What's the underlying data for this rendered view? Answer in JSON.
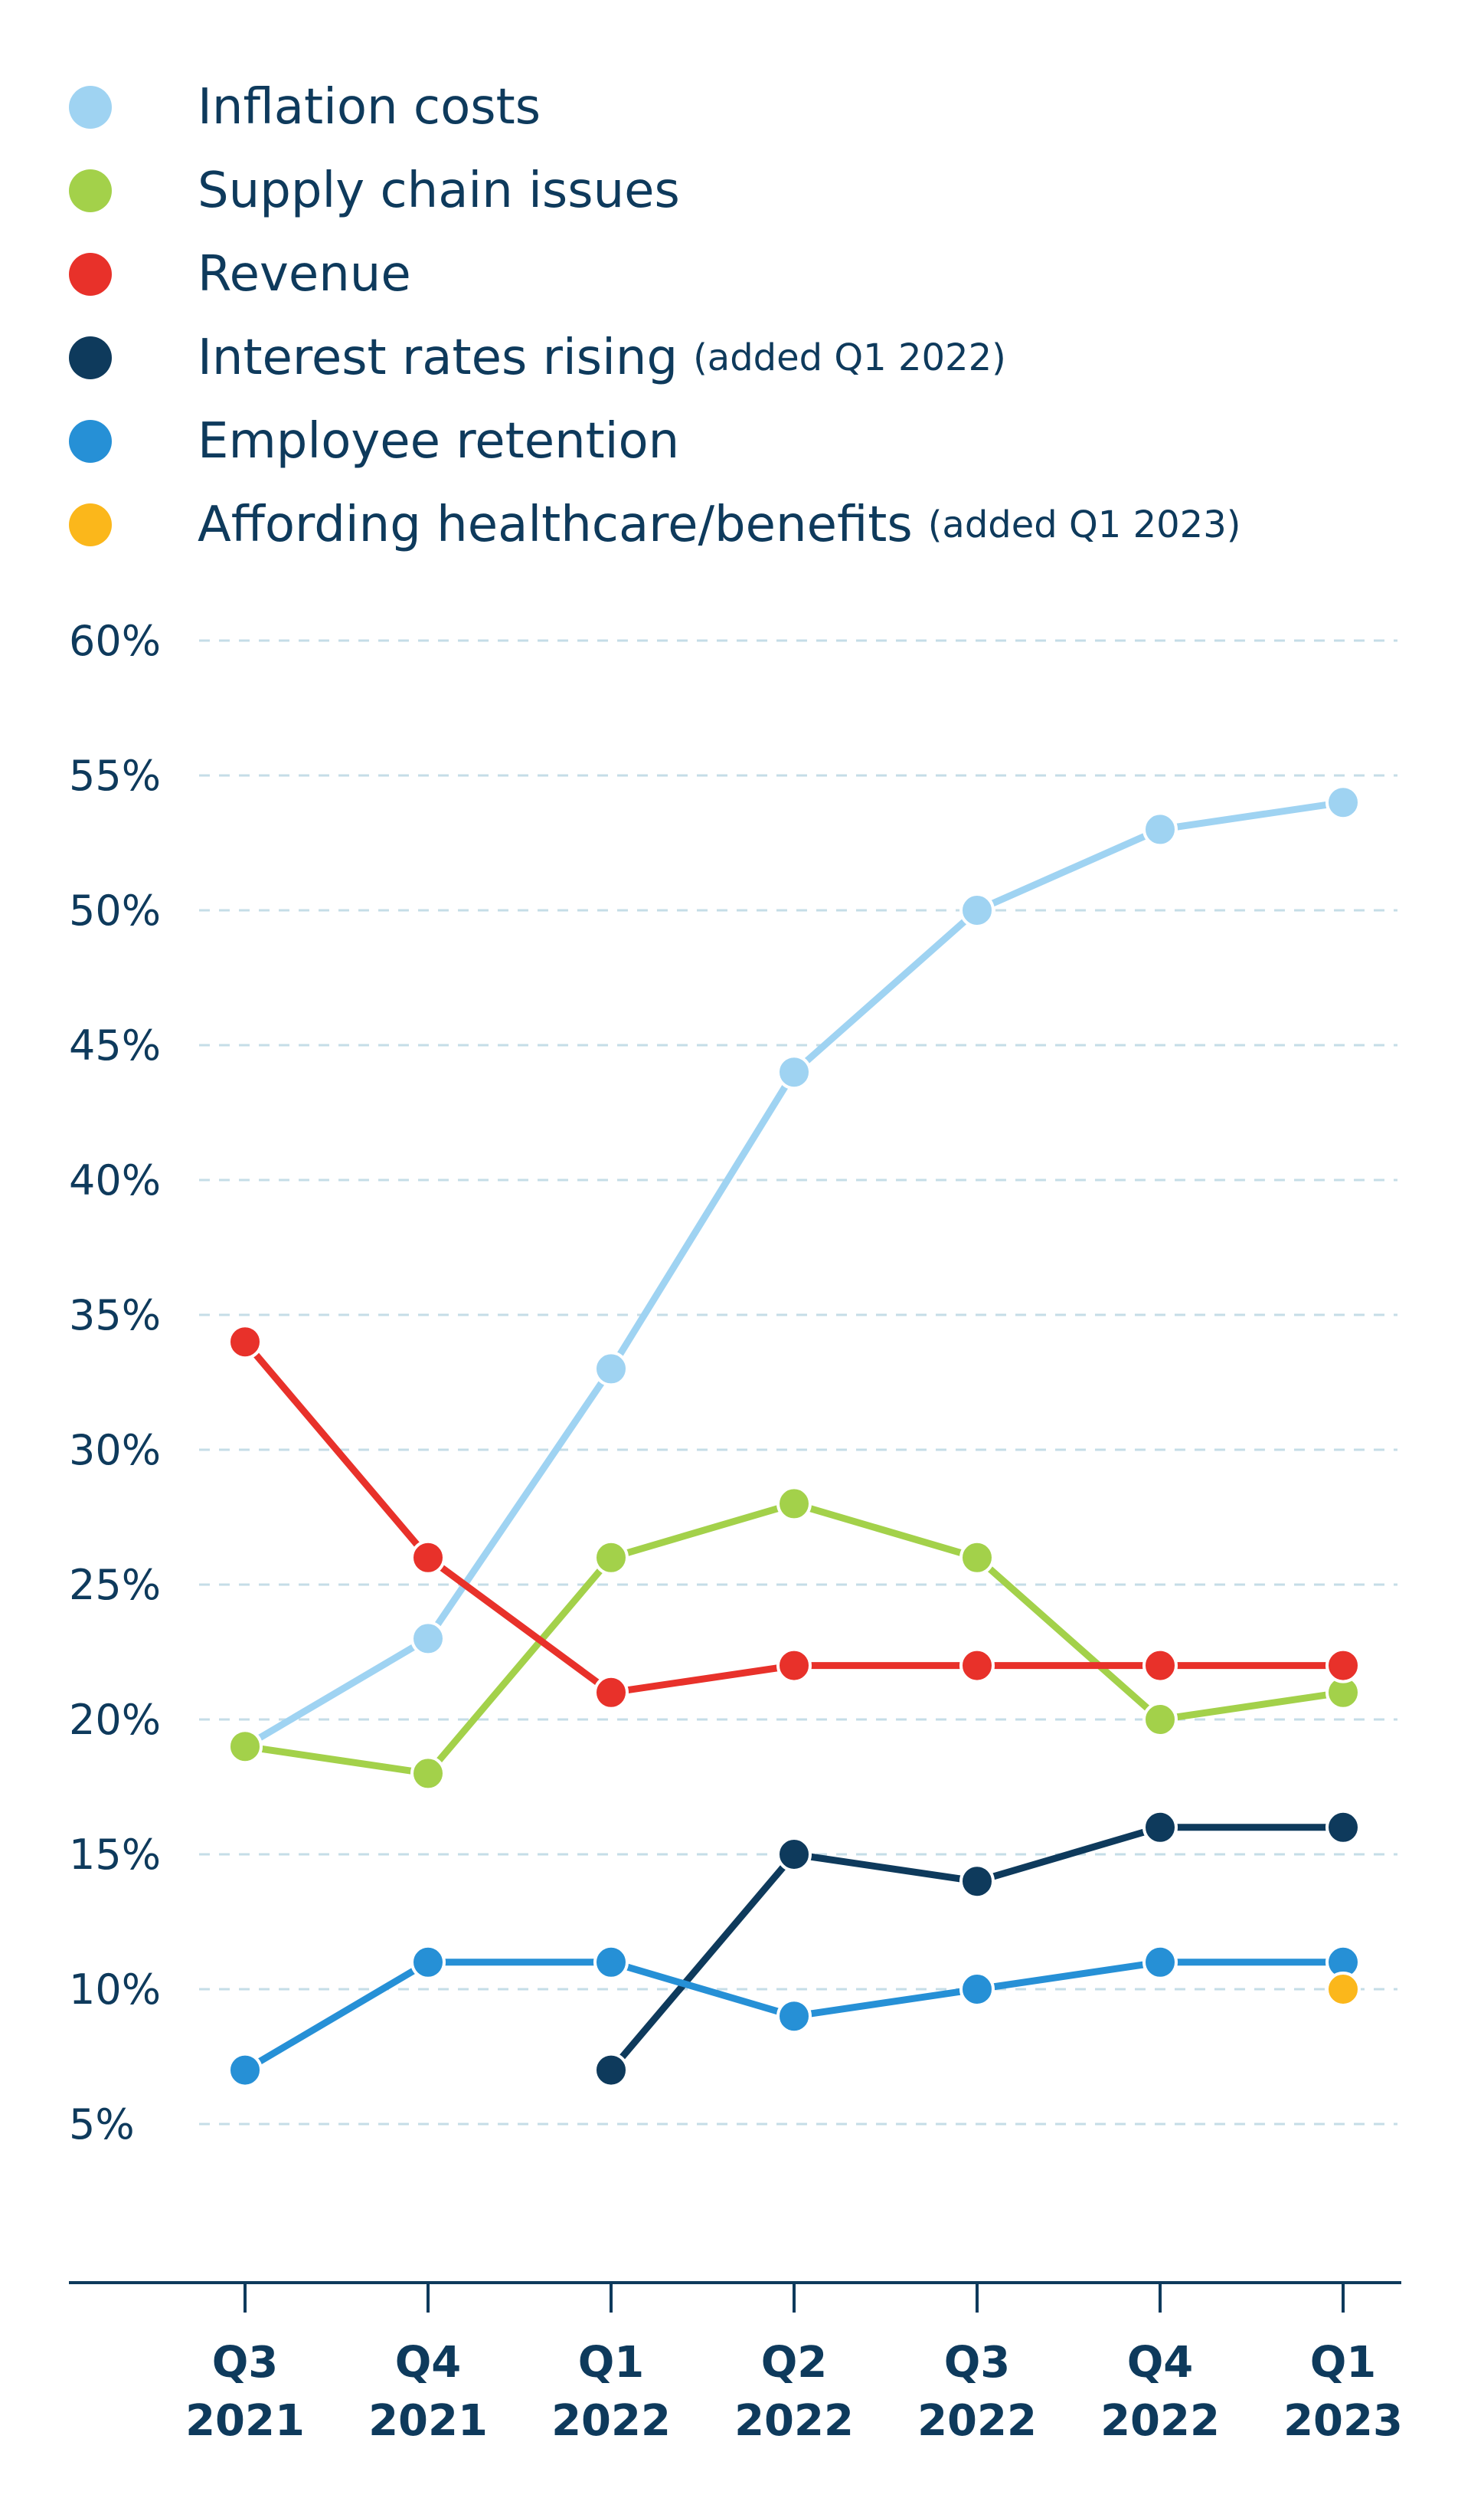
{
  "chart_data": {
    "type": "line",
    "title": "",
    "xlabel": "",
    "ylabel": "",
    "ylim": [
      0,
      60
    ],
    "y_ticks": [
      5,
      10,
      15,
      20,
      25,
      30,
      35,
      40,
      45,
      50,
      55,
      60
    ],
    "y_tick_labels": [
      "5%",
      "10%",
      "15%",
      "20%",
      "25%",
      "30%",
      "35%",
      "40%",
      "45%",
      "50%",
      "55%",
      "60%"
    ],
    "grid": true,
    "legend_position": "top-left",
    "categories": [
      {
        "q": "Q3",
        "year": "2021"
      },
      {
        "q": "Q4",
        "year": "2021"
      },
      {
        "q": "Q1",
        "year": "2022"
      },
      {
        "q": "Q2",
        "year": "2022"
      },
      {
        "q": "Q3",
        "year": "2022"
      },
      {
        "q": "Q4",
        "year": "2022"
      },
      {
        "q": "Q1",
        "year": "2023"
      }
    ],
    "series": [
      {
        "name": "Inflation costs",
        "note": "",
        "color": "#9fd3f2",
        "values": [
          19,
          23,
          33,
          44,
          50,
          53,
          54
        ]
      },
      {
        "name": "Supply chain issues",
        "note": "",
        "color": "#a3d14a",
        "values": [
          19,
          18,
          26,
          28,
          26,
          20,
          21
        ]
      },
      {
        "name": "Revenue",
        "note": "",
        "color": "#e8312a",
        "values": [
          34,
          26,
          21,
          22,
          22,
          22,
          22
        ]
      },
      {
        "name": "Interest rates rising",
        "note": "(added Q1 2022)",
        "color": "#0e3a5c",
        "values": [
          null,
          null,
          7,
          15,
          14,
          16,
          16
        ]
      },
      {
        "name": "Employee retention",
        "note": "",
        "color": "#2690d6",
        "values": [
          7,
          11,
          11,
          9,
          10,
          11,
          11
        ]
      },
      {
        "name": "Affording healthcare/benefits",
        "note": "(added Q1 2023)",
        "color": "#fbb71b",
        "values": [
          null,
          null,
          null,
          null,
          null,
          null,
          10
        ]
      }
    ]
  }
}
